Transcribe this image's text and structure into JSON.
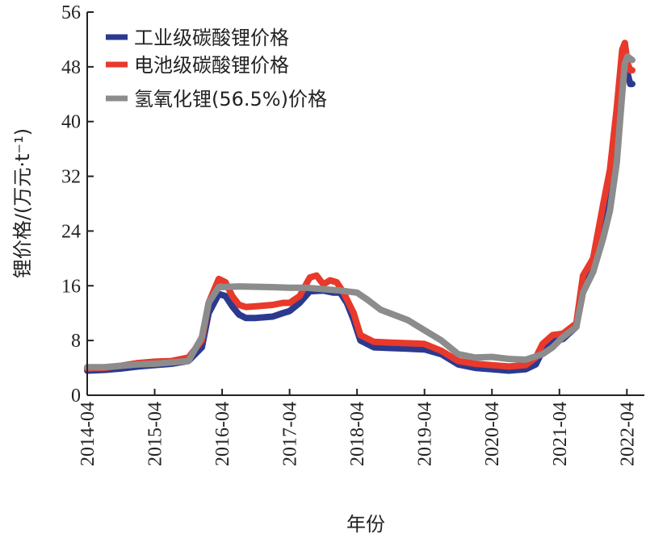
{
  "chart_data": {
    "type": "line",
    "title": "",
    "xlabel": "年份",
    "ylabel": "锂价格/(万元·t⁻¹)",
    "ylim": [
      0,
      56
    ],
    "yticks": [
      0,
      8,
      16,
      24,
      32,
      40,
      48,
      56
    ],
    "xlim": [
      2014.25,
      2022.33
    ],
    "xticks": [
      {
        "value": 2014.25,
        "label": "2014-04"
      },
      {
        "value": 2015.25,
        "label": "2015-04"
      },
      {
        "value": 2016.25,
        "label": "2016-04"
      },
      {
        "value": 2017.25,
        "label": "2017-04"
      },
      {
        "value": 2018.25,
        "label": "2018-04"
      },
      {
        "value": 2019.25,
        "label": "2019-04"
      },
      {
        "value": 2020.25,
        "label": "2020-04"
      },
      {
        "value": 2021.25,
        "label": "2021-04"
      },
      {
        "value": 2022.25,
        "label": "2022-04"
      }
    ],
    "grid": false,
    "legend_position": "top-left",
    "series": [
      {
        "name": "工业级碳酸锂价格",
        "color": "#2b3a8f",
        "points": [
          [
            2014.25,
            3.6
          ],
          [
            2014.5,
            3.7
          ],
          [
            2014.75,
            3.9
          ],
          [
            2015.0,
            4.2
          ],
          [
            2015.25,
            4.4
          ],
          [
            2015.5,
            4.6
          ],
          [
            2015.75,
            5.0
          ],
          [
            2015.95,
            7.0
          ],
          [
            2016.05,
            12.0
          ],
          [
            2016.2,
            14.8
          ],
          [
            2016.3,
            14.5
          ],
          [
            2016.4,
            13.0
          ],
          [
            2016.5,
            11.8
          ],
          [
            2016.6,
            11.3
          ],
          [
            2016.75,
            11.3
          ],
          [
            2017.0,
            11.5
          ],
          [
            2017.15,
            12.0
          ],
          [
            2017.25,
            12.3
          ],
          [
            2017.4,
            13.5
          ],
          [
            2017.55,
            15.2
          ],
          [
            2017.75,
            15.3
          ],
          [
            2017.9,
            15.0
          ],
          [
            2018.0,
            15.0
          ],
          [
            2018.1,
            13.5
          ],
          [
            2018.2,
            11.0
          ],
          [
            2018.3,
            8.0
          ],
          [
            2018.5,
            7.0
          ],
          [
            2018.75,
            6.9
          ],
          [
            2019.0,
            6.8
          ],
          [
            2019.25,
            6.7
          ],
          [
            2019.5,
            6.0
          ],
          [
            2019.75,
            4.5
          ],
          [
            2020.0,
            4.0
          ],
          [
            2020.25,
            3.8
          ],
          [
            2020.5,
            3.6
          ],
          [
            2020.75,
            3.8
          ],
          [
            2020.9,
            4.5
          ],
          [
            2021.0,
            6.5
          ],
          [
            2021.15,
            7.8
          ],
          [
            2021.3,
            8.2
          ],
          [
            2021.5,
            10.0
          ],
          [
            2021.6,
            16.0
          ],
          [
            2021.75,
            18.5
          ],
          [
            2021.9,
            25.0
          ],
          [
            2022.0,
            30.0
          ],
          [
            2022.1,
            39.0
          ],
          [
            2022.18,
            46.0
          ],
          [
            2022.22,
            50.0
          ],
          [
            2022.26,
            47.0
          ],
          [
            2022.3,
            45.5
          ],
          [
            2022.33,
            45.5
          ]
        ]
      },
      {
        "name": "电池级碳酸锂价格",
        "color": "#e8392b",
        "points": [
          [
            2014.25,
            3.9
          ],
          [
            2014.5,
            4.0
          ],
          [
            2014.75,
            4.3
          ],
          [
            2015.0,
            4.7
          ],
          [
            2015.25,
            4.9
          ],
          [
            2015.5,
            5.0
          ],
          [
            2015.75,
            5.5
          ],
          [
            2015.95,
            8.0
          ],
          [
            2016.05,
            13.5
          ],
          [
            2016.2,
            17.0
          ],
          [
            2016.3,
            16.5
          ],
          [
            2016.4,
            14.5
          ],
          [
            2016.5,
            13.2
          ],
          [
            2016.6,
            12.9
          ],
          [
            2016.75,
            13.0
          ],
          [
            2017.0,
            13.2
          ],
          [
            2017.15,
            13.5
          ],
          [
            2017.25,
            13.5
          ],
          [
            2017.4,
            14.5
          ],
          [
            2017.55,
            17.2
          ],
          [
            2017.65,
            17.5
          ],
          [
            2017.75,
            16.2
          ],
          [
            2017.85,
            16.8
          ],
          [
            2017.95,
            16.5
          ],
          [
            2018.05,
            15.0
          ],
          [
            2018.2,
            12.0
          ],
          [
            2018.3,
            8.8
          ],
          [
            2018.5,
            7.8
          ],
          [
            2018.75,
            7.7
          ],
          [
            2019.0,
            7.6
          ],
          [
            2019.25,
            7.5
          ],
          [
            2019.5,
            6.5
          ],
          [
            2019.75,
            5.0
          ],
          [
            2020.0,
            4.6
          ],
          [
            2020.25,
            4.4
          ],
          [
            2020.5,
            4.2
          ],
          [
            2020.75,
            4.4
          ],
          [
            2020.9,
            5.5
          ],
          [
            2021.0,
            7.5
          ],
          [
            2021.15,
            8.8
          ],
          [
            2021.3,
            9.0
          ],
          [
            2021.5,
            10.5
          ],
          [
            2021.6,
            17.5
          ],
          [
            2021.75,
            20.0
          ],
          [
            2021.9,
            28.0
          ],
          [
            2022.0,
            33.0
          ],
          [
            2022.1,
            42.0
          ],
          [
            2022.18,
            50.5
          ],
          [
            2022.22,
            51.5
          ],
          [
            2022.26,
            48.5
          ],
          [
            2022.3,
            47.5
          ],
          [
            2022.33,
            47.5
          ]
        ]
      },
      {
        "name": "氢氧化锂(56.5%)价格",
        "color": "#8c8c8c",
        "points": [
          [
            2014.25,
            4.1
          ],
          [
            2014.5,
            4.1
          ],
          [
            2014.75,
            4.3
          ],
          [
            2015.0,
            4.5
          ],
          [
            2015.25,
            4.6
          ],
          [
            2015.5,
            4.8
          ],
          [
            2015.75,
            5.0
          ],
          [
            2015.95,
            8.5
          ],
          [
            2016.05,
            13.5
          ],
          [
            2016.2,
            15.8
          ],
          [
            2016.5,
            15.9
          ],
          [
            2017.0,
            15.8
          ],
          [
            2017.25,
            15.7
          ],
          [
            2017.5,
            15.7
          ],
          [
            2017.75,
            15.5
          ],
          [
            2018.0,
            15.3
          ],
          [
            2018.25,
            15.0
          ],
          [
            2018.4,
            14.0
          ],
          [
            2018.6,
            12.5
          ],
          [
            2019.0,
            11.0
          ],
          [
            2019.25,
            9.5
          ],
          [
            2019.5,
            8.0
          ],
          [
            2019.75,
            6.0
          ],
          [
            2020.0,
            5.5
          ],
          [
            2020.25,
            5.6
          ],
          [
            2020.5,
            5.3
          ],
          [
            2020.75,
            5.2
          ],
          [
            2021.0,
            6.0
          ],
          [
            2021.15,
            7.0
          ],
          [
            2021.3,
            8.5
          ],
          [
            2021.5,
            10.0
          ],
          [
            2021.6,
            15.0
          ],
          [
            2021.75,
            18.0
          ],
          [
            2021.9,
            23.0
          ],
          [
            2022.0,
            27.0
          ],
          [
            2022.1,
            34.0
          ],
          [
            2022.18,
            44.0
          ],
          [
            2022.22,
            48.5
          ],
          [
            2022.26,
            49.5
          ],
          [
            2022.3,
            49.2
          ],
          [
            2022.33,
            49.0
          ]
        ]
      }
    ]
  }
}
